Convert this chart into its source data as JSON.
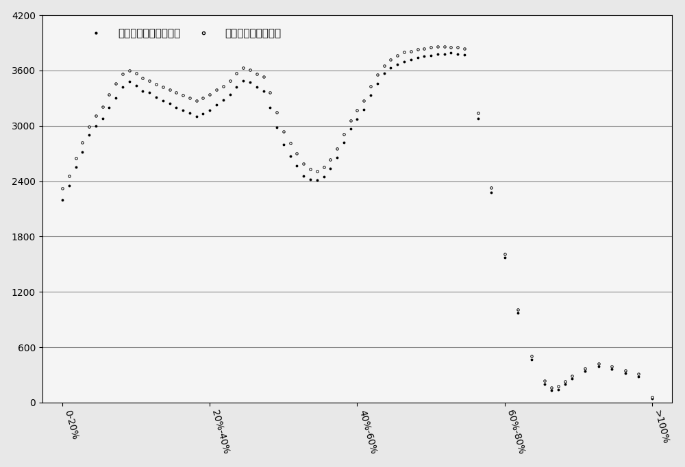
{
  "x_labels": [
    "0-20%",
    "20%-40%",
    "40%-60%",
    "60%-80%",
    ">100%"
  ],
  "legend_label1": "三绕组变压器有功损耗",
  "legend_label2": "两台变压器组合方式",
  "ylim": [
    0,
    4200
  ],
  "yticks": [
    0,
    600,
    1200,
    1800,
    2400,
    3000,
    3600,
    4200
  ],
  "background_color": "#f0f0f0",
  "line_color1": "#000000",
  "line_color2": "#000000",
  "series1_x": [
    0.0,
    0.05,
    0.1,
    0.15,
    0.2,
    0.25,
    0.3,
    0.35,
    0.4,
    0.45,
    0.5,
    0.55,
    0.6,
    0.65,
    0.7,
    0.75,
    0.8,
    0.85,
    0.9,
    0.95,
    1.0,
    1.05,
    1.1,
    1.15,
    1.2,
    1.25,
    1.3,
    1.35,
    1.4,
    1.45,
    1.5,
    1.55,
    1.6,
    1.65,
    1.7,
    1.75,
    1.8,
    1.85,
    1.9,
    1.95,
    2.0,
    2.05,
    2.1,
    2.15,
    2.2,
    2.25,
    2.3,
    2.35,
    2.4,
    2.45,
    2.5,
    2.55,
    2.6,
    2.65,
    2.7,
    2.75,
    2.8,
    2.85,
    2.9,
    2.95,
    3.0,
    3.1,
    3.2,
    3.3,
    3.4,
    3.5,
    3.6,
    3.65,
    3.7,
    3.75,
    3.8,
    3.9,
    4.0,
    4.1,
    4.2,
    4.3,
    4.4
  ],
  "series1_y": [
    2200,
    2350,
    2550,
    2720,
    2900,
    3000,
    3080,
    3200,
    3300,
    3420,
    3480,
    3440,
    3380,
    3360,
    3310,
    3270,
    3240,
    3200,
    3170,
    3140,
    3100,
    3130,
    3170,
    3230,
    3280,
    3340,
    3420,
    3490,
    3470,
    3420,
    3380,
    3200,
    2980,
    2800,
    2670,
    2570,
    2460,
    2420,
    2410,
    2450,
    2540,
    2660,
    2820,
    2970,
    3070,
    3180,
    3330,
    3460,
    3570,
    3630,
    3670,
    3700,
    3720,
    3740,
    3755,
    3765,
    3775,
    3780,
    3790,
    3780,
    3770,
    3080,
    2280,
    1570,
    970,
    470,
    200,
    130,
    140,
    200,
    260,
    340,
    390,
    360,
    320,
    280,
    40
  ],
  "series2_x": [
    0.0,
    0.05,
    0.1,
    0.15,
    0.2,
    0.25,
    0.3,
    0.35,
    0.4,
    0.45,
    0.5,
    0.55,
    0.6,
    0.65,
    0.7,
    0.75,
    0.8,
    0.85,
    0.9,
    0.95,
    1.0,
    1.05,
    1.1,
    1.15,
    1.2,
    1.25,
    1.3,
    1.35,
    1.4,
    1.45,
    1.5,
    1.55,
    1.6,
    1.65,
    1.7,
    1.75,
    1.8,
    1.85,
    1.9,
    1.95,
    2.0,
    2.05,
    2.1,
    2.15,
    2.2,
    2.25,
    2.3,
    2.35,
    2.4,
    2.45,
    2.5,
    2.55,
    2.6,
    2.65,
    2.7,
    2.75,
    2.8,
    2.85,
    2.9,
    2.95,
    3.0,
    3.1,
    3.2,
    3.3,
    3.4,
    3.5,
    3.6,
    3.65,
    3.7,
    3.75,
    3.8,
    3.9,
    4.0,
    4.1,
    4.2,
    4.3,
    4.4
  ],
  "series2_y": [
    2320,
    2460,
    2650,
    2820,
    2990,
    3110,
    3210,
    3340,
    3460,
    3565,
    3600,
    3570,
    3520,
    3490,
    3450,
    3420,
    3390,
    3360,
    3330,
    3300,
    3270,
    3300,
    3340,
    3390,
    3430,
    3490,
    3570,
    3630,
    3610,
    3560,
    3530,
    3360,
    3150,
    2940,
    2810,
    2700,
    2590,
    2530,
    2510,
    2555,
    2635,
    2750,
    2910,
    3055,
    3170,
    3275,
    3430,
    3555,
    3655,
    3715,
    3760,
    3800,
    3810,
    3830,
    3840,
    3850,
    3860,
    3860,
    3855,
    3855,
    3840,
    3140,
    2330,
    1610,
    1010,
    505,
    235,
    160,
    175,
    230,
    290,
    370,
    420,
    390,
    350,
    310,
    55
  ]
}
